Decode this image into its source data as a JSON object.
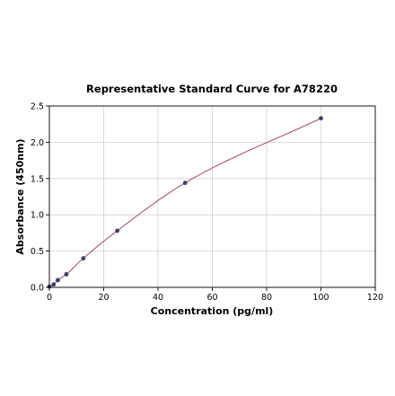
{
  "chart_data": {
    "type": "scatter",
    "title": "Representative Standard Curve for A78220",
    "xlabel": "Concentration (pg/ml)",
    "ylabel": "Absorbance (450nm)",
    "xlim": [
      0,
      120
    ],
    "ylim": [
      0,
      2.5
    ],
    "xticks": [
      0,
      20,
      40,
      60,
      80,
      100,
      120
    ],
    "yticks": [
      0.0,
      0.5,
      1.0,
      1.5,
      2.0,
      2.5
    ],
    "xtick_labels": [
      "0",
      "20",
      "40",
      "60",
      "80",
      "100",
      "120"
    ],
    "ytick_labels": [
      "0.0",
      "0.5",
      "1.0",
      "1.5",
      "2.0",
      "2.5"
    ],
    "grid": true,
    "x": [
      0,
      1.56,
      3.13,
      6.25,
      12.5,
      25,
      50,
      100
    ],
    "y": [
      0.01,
      0.04,
      0.1,
      0.18,
      0.4,
      0.78,
      1.44,
      2.33
    ],
    "fit_line": true,
    "colors": {
      "points": "#3a3f6b",
      "curve": "#b0507a"
    }
  }
}
